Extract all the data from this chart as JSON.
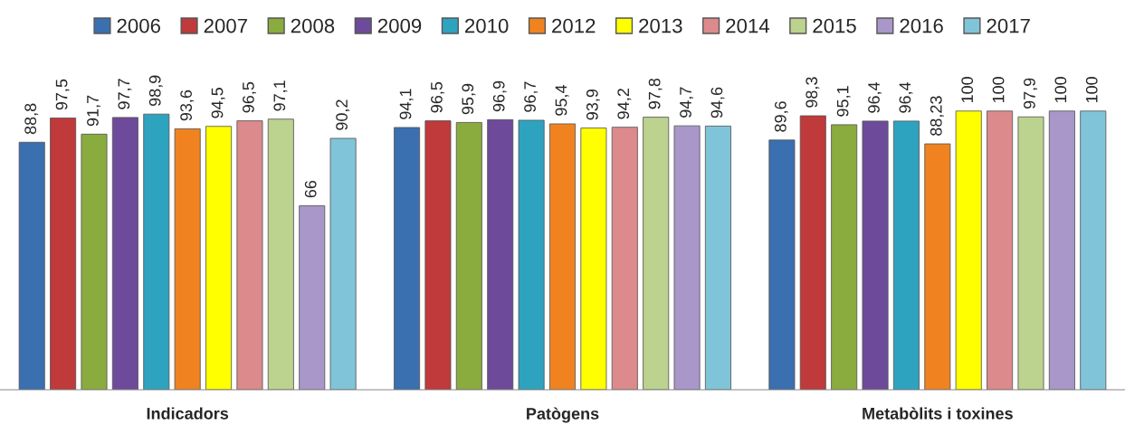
{
  "chart_data": {
    "type": "bar",
    "categories": [
      "Indicadors",
      "Patògens",
      "Metabòlits i toxines"
    ],
    "series": [
      {
        "name": "2006",
        "color": "#3a6fb0",
        "values": [
          88.8,
          94.1,
          89.6
        ],
        "value_labels": [
          "88,8",
          "94,1",
          "89,6"
        ]
      },
      {
        "name": "2007",
        "color": "#c0393b",
        "values": [
          97.5,
          96.5,
          98.3
        ],
        "value_labels": [
          "97,5",
          "96,5",
          "98,3"
        ]
      },
      {
        "name": "2008",
        "color": "#8aab3e",
        "values": [
          91.7,
          95.9,
          95.1
        ],
        "value_labels": [
          "91,7",
          "95,9",
          "95,1"
        ]
      },
      {
        "name": "2009",
        "color": "#6e4a9a",
        "values": [
          97.7,
          96.9,
          96.4
        ],
        "value_labels": [
          "97,7",
          "96,9",
          "96,4"
        ]
      },
      {
        "name": "2010",
        "color": "#2ea3c0",
        "values": [
          98.9,
          96.7,
          96.4
        ],
        "value_labels": [
          "98,9",
          "96,7",
          "96,4"
        ]
      },
      {
        "name": "2012",
        "color": "#f0831f",
        "values": [
          93.6,
          95.4,
          88.23
        ],
        "value_labels": [
          "93,6",
          "95,4",
          "88,23"
        ]
      },
      {
        "name": "2013",
        "color": "#ffff00",
        "values": [
          94.5,
          93.9,
          100
        ],
        "value_labels": [
          "94,5",
          "93,9",
          "100"
        ]
      },
      {
        "name": "2014",
        "color": "#dc8a8c",
        "values": [
          96.5,
          94.2,
          100
        ],
        "value_labels": [
          "96,5",
          "94,2",
          "100"
        ]
      },
      {
        "name": "2015",
        "color": "#bcd28f",
        "values": [
          97.1,
          97.8,
          97.9
        ],
        "value_labels": [
          "97,1",
          "97,8",
          "97,9"
        ]
      },
      {
        "name": "2016",
        "color": "#a897c8",
        "values": [
          66,
          94.7,
          100
        ],
        "value_labels": [
          "66",
          "94,7",
          "100"
        ]
      },
      {
        "name": "2017",
        "color": "#80c4da",
        "values": [
          90.2,
          94.6,
          100
        ],
        "value_labels": [
          "90,2",
          "94,6",
          "100"
        ]
      }
    ],
    "legend": "top",
    "grid": false
  }
}
